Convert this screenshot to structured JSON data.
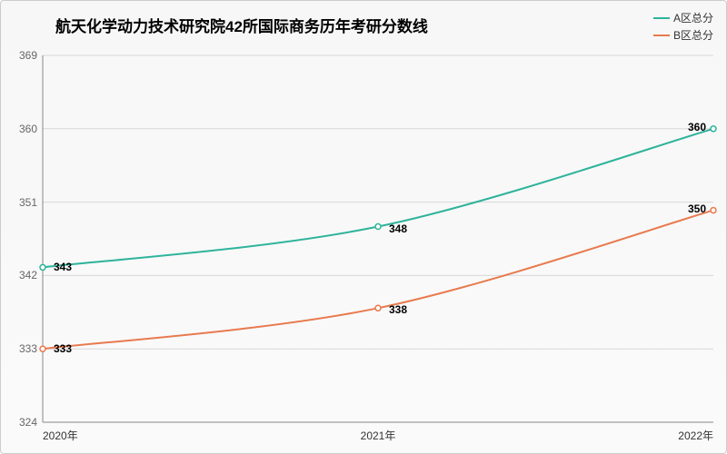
{
  "chart": {
    "type": "line",
    "title": "航天化学动力技术研究院42所国际商务历年考研分数线",
    "title_fontsize": 17,
    "background_top": "#f7f7f7",
    "background_bottom": "#fafafa",
    "border_color": "#cccccc",
    "x_categories": [
      "2020年",
      "2021年",
      "2022年"
    ],
    "ylim": [
      324,
      369
    ],
    "yticks": [
      324,
      333,
      342,
      351,
      360,
      369
    ],
    "ytick_step": 9,
    "grid_color": "#d8d8d8",
    "axis_color": "#888888",
    "series": [
      {
        "name": "A区总分",
        "color": "#2eb39b",
        "values": [
          343,
          348,
          360
        ],
        "line_width": 2,
        "marker_radius": 3
      },
      {
        "name": "B区总分",
        "color": "#e87a4e",
        "values": [
          333,
          338,
          350
        ],
        "line_width": 2,
        "marker_radius": 3
      }
    ],
    "label_fontsize": 12,
    "tick_fontsize": 12,
    "point_label_fontsize": 12
  }
}
